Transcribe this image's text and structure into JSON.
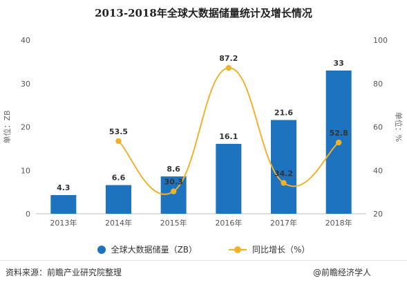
{
  "chart_data": {
    "type": "bar+line",
    "title": "2013-2018年全球大数据储量统计及增长情况",
    "categories": [
      "2013年",
      "2014年",
      "2015年",
      "2016年",
      "2017年",
      "2018年"
    ],
    "series": [
      {
        "name": "全球大数据储量（ZB）",
        "type": "bar",
        "axis": "left",
        "values": [
          4.3,
          6.6,
          8.6,
          16.1,
          21.6,
          33
        ],
        "labels": [
          "4.3",
          "6.6",
          "8.6",
          "16.1",
          "21.6",
          "33"
        ],
        "color": "#1e73be"
      },
      {
        "name": "同比增长（%）",
        "type": "line",
        "axis": "right",
        "smooth": true,
        "values": [
          null,
          53.5,
          30.3,
          87.2,
          34.2,
          52.8
        ],
        "labels": [
          "",
          "53.5",
          "30.3",
          "87.2",
          "34.2",
          "52.8"
        ],
        "color": "#f0b22d"
      }
    ],
    "ylabel_left": "单位：ZB",
    "ylabel_right": "单位：%",
    "ylim_left": [
      0,
      40
    ],
    "yticks_left": [
      "0",
      "10",
      "20",
      "30",
      "40"
    ],
    "ylim_right": [
      20,
      100
    ],
    "yticks_right": [
      "20",
      "40",
      "60",
      "80",
      "100"
    ],
    "grid": false,
    "legend_position": "bottom"
  },
  "footer": {
    "source": "资料来源：前瞻产业研究院整理",
    "brand": "@前瞻经济学人"
  }
}
